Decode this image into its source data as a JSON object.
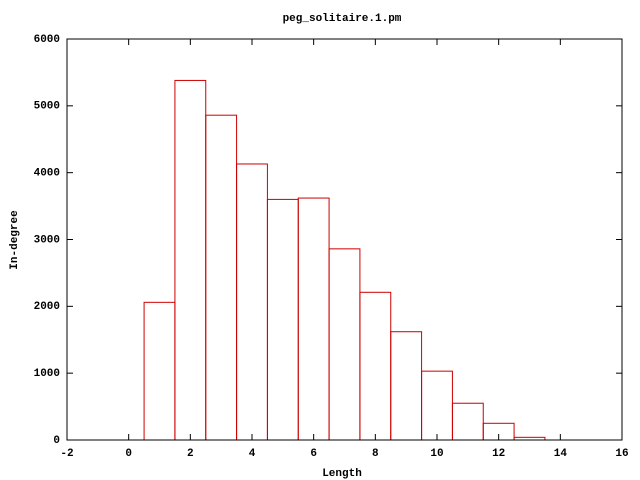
{
  "chart_data": {
    "type": "histogram",
    "title": "peg_solitaire.1.pm",
    "x_label": "Length",
    "y_label": "In-degree",
    "bins": [
      0.5,
      1.5,
      2.5,
      3.5,
      4.5,
      5.5,
      6.5,
      7.5,
      8.5,
      9.5,
      10.5,
      11.5,
      12.5,
      13.5
    ],
    "values": [
      2060,
      5380,
      4860,
      4130,
      3600,
      3620,
      2860,
      2210,
      1620,
      1030,
      550,
      250,
      40
    ],
    "color": "#cc0000",
    "xlim": [
      -2,
      16
    ],
    "xticks": [
      -2,
      0,
      2,
      4,
      6,
      8,
      10,
      12,
      14,
      16
    ],
    "ylim": [
      0,
      6000
    ],
    "yticks": [
      0,
      1000,
      2000,
      3000,
      4000,
      5000,
      6000
    ]
  }
}
